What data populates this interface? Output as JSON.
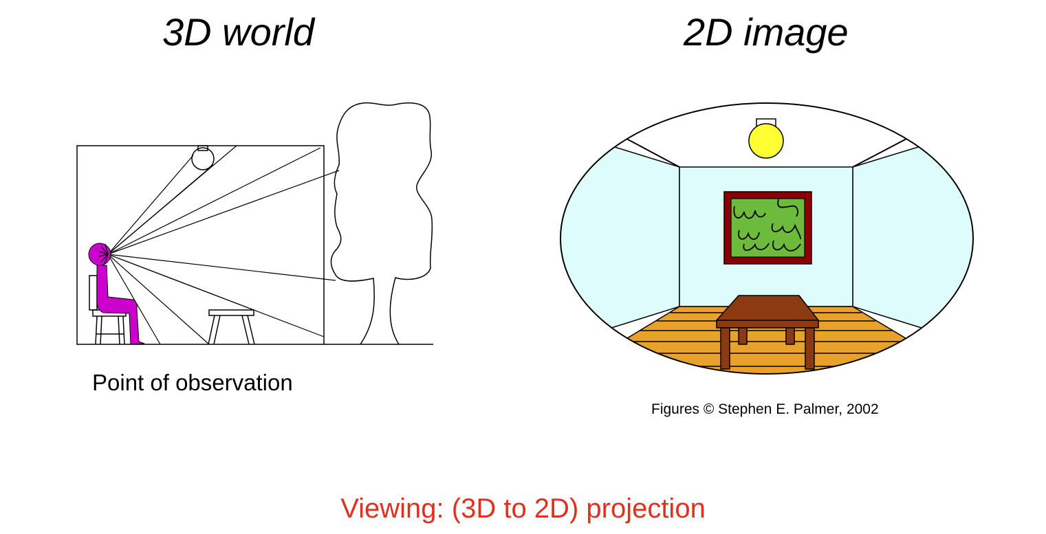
{
  "headings": {
    "left": "3D world",
    "right": "2D image"
  },
  "captions": {
    "observation": "Point of observation",
    "credit": "Figures © Stephen E. Palmer, 2002"
  },
  "footer": "Viewing: (3D to 2D) projection",
  "colors": {
    "person": "#cc00cc",
    "wall": "#dffcfc",
    "floor": "#e8a22c",
    "table": "#8b3a12",
    "frame": "#8b0000",
    "painting": "#6dbb3c",
    "lamp": "#ffff33",
    "footer": "#e0301e"
  }
}
